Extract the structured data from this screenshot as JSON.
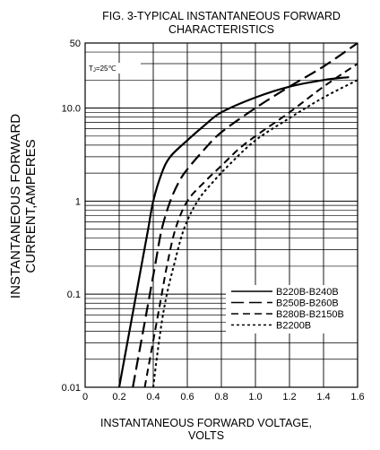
{
  "chart_data": {
    "type": "line",
    "title_lines": [
      "FIG. 3-TYPICAL INSTANTANEOUS FORWARD",
      "CHARACTERISTICS"
    ],
    "xlabel_lines": [
      "INSTANTANEOUS FORWARD VOLTAGE,",
      "VOLTS"
    ],
    "ylabel_lines": [
      "INSTANTANEOUS FORWARD",
      "CURRENT,AMPERES"
    ],
    "condition": "TJ=25℃",
    "condition_sub": "J",
    "condition_value": "=25℃",
    "condition_main": "T",
    "x_scale": "linear",
    "y_scale": "log",
    "xlim": [
      0,
      1.6
    ],
    "ylim": [
      0.01,
      50
    ],
    "grid": true,
    "legend_placement": "bottom-right",
    "x_ticks": [
      {
        "value": 0,
        "label": "0"
      },
      {
        "value": 0.2,
        "label": "0.2"
      },
      {
        "value": 0.4,
        "label": "0.4"
      },
      {
        "value": 0.6,
        "label": "0.6"
      },
      {
        "value": 0.8,
        "label": "0.8"
      },
      {
        "value": 1.0,
        "label": "1.0"
      },
      {
        "value": 1.2,
        "label": "1.2"
      },
      {
        "value": 1.4,
        "label": "1.4"
      },
      {
        "value": 1.6,
        "label": "1.6"
      }
    ],
    "y_ticks": [
      {
        "value": 0.01,
        "label": "0.01"
      },
      {
        "value": 0.1,
        "label": "0.1"
      },
      {
        "value": 1,
        "label": "1"
      },
      {
        "value": 10,
        "label": "10.0"
      },
      {
        "value": 50,
        "label": "50"
      }
    ],
    "series": [
      {
        "name": "B220B-B240B",
        "dash": "solid",
        "x": [
          0.2,
          0.23,
          0.27,
          0.3,
          0.33,
          0.37,
          0.4,
          0.45,
          0.5,
          0.6,
          0.7,
          0.8,
          1.0,
          1.2,
          1.4,
          1.55
        ],
        "y": [
          0.01,
          0.02,
          0.05,
          0.1,
          0.2,
          0.5,
          1.0,
          2.0,
          3.0,
          4.5,
          6.5,
          9.0,
          13.0,
          17.0,
          20.0,
          21.5
        ]
      },
      {
        "name": "B250B-B260B",
        "dash": "long-dash",
        "x": [
          0.28,
          0.31,
          0.35,
          0.38,
          0.41,
          0.45,
          0.5,
          0.55,
          0.6,
          0.7,
          0.8,
          1.0,
          1.2,
          1.4,
          1.6
        ],
        "y": [
          0.01,
          0.02,
          0.05,
          0.1,
          0.2,
          0.5,
          1.0,
          1.6,
          2.2,
          3.6,
          5.5,
          10.0,
          17.0,
          28.0,
          50.0
        ]
      },
      {
        "name": "B280B-B2150B",
        "dash": "medium-dash",
        "x": [
          0.35,
          0.38,
          0.42,
          0.45,
          0.48,
          0.53,
          0.6,
          0.7,
          0.8,
          0.9,
          1.0,
          1.2,
          1.4,
          1.6
        ],
        "y": [
          0.01,
          0.02,
          0.05,
          0.1,
          0.2,
          0.5,
          1.0,
          1.6,
          2.4,
          3.6,
          5.0,
          9.0,
          17.0,
          30.0
        ]
      },
      {
        "name": "B2200B",
        "dash": "dotted",
        "x": [
          0.4,
          0.42,
          0.45,
          0.48,
          0.52,
          0.58,
          0.66,
          0.75,
          0.85,
          1.0,
          1.2,
          1.4,
          1.6
        ],
        "y": [
          0.01,
          0.02,
          0.05,
          0.1,
          0.2,
          0.5,
          1.0,
          1.6,
          2.5,
          4.5,
          7.8,
          13.0,
          20.0
        ]
      }
    ]
  }
}
